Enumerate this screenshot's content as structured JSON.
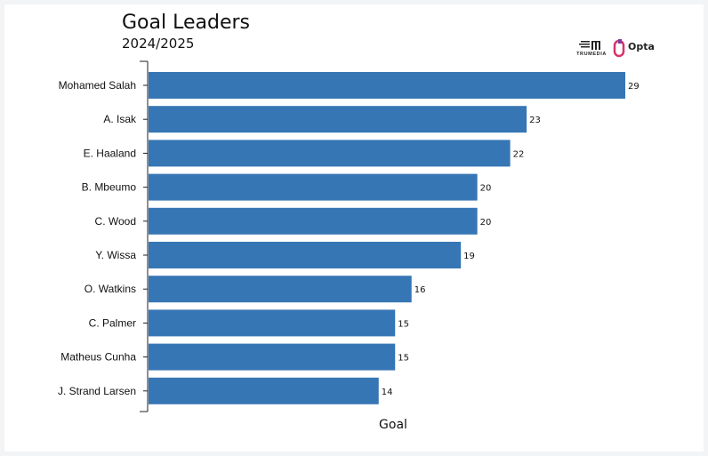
{
  "header": {
    "title": "Goal Leaders",
    "subtitle": "2024/2025"
  },
  "logos": {
    "trumedia": "TRUMEDIA",
    "opta": "Opta"
  },
  "colors": {
    "bar": "#3676b4",
    "opta_logo": "#d6336c"
  },
  "chart_data": {
    "type": "bar",
    "orientation": "horizontal",
    "title": "Goal Leaders",
    "subtitle": "2024/2025",
    "xlabel": "Goal",
    "ylabel": "",
    "categories": [
      "Mohamed Salah",
      "A. Isak",
      "E. Haaland",
      "B. Mbeumo",
      "C. Wood",
      "Y. Wissa",
      "O. Watkins",
      "C. Palmer",
      "Matheus Cunha",
      "J. Strand Larsen"
    ],
    "values": [
      29,
      23,
      22,
      20,
      20,
      19,
      16,
      15,
      15,
      14
    ],
    "xlim": [
      0,
      29
    ],
    "grid": false,
    "legend": "none"
  }
}
